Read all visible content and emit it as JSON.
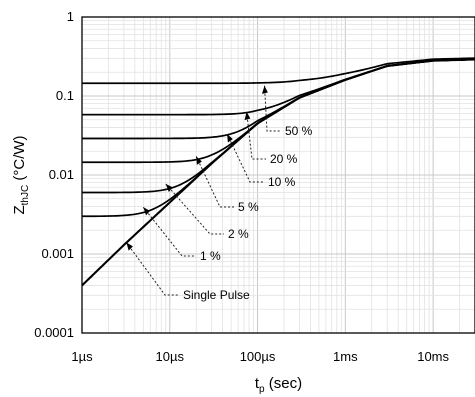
{
  "chart_data": {
    "type": "line",
    "title": "",
    "x_scale": "log",
    "y_scale": "log",
    "xlim": [
      1e-06,
      0.03
    ],
    "ylim": [
      0.0001,
      1
    ],
    "grid": true,
    "xlabel": {
      "main": "t",
      "sub": "p",
      "unit": " (sec)"
    },
    "ylabel": {
      "main": "Z",
      "sub": "thJC",
      "unit": " (°C/W)"
    },
    "x_ticks": [
      {
        "value": 1e-06,
        "label": "1µs"
      },
      {
        "value": 1e-05,
        "label": "10µs"
      },
      {
        "value": 0.0001,
        "label": "100µs"
      },
      {
        "value": 0.001,
        "label": "1ms"
      },
      {
        "value": 0.01,
        "label": "10ms"
      }
    ],
    "y_ticks": [
      {
        "value": 1,
        "label": "1"
      },
      {
        "value": 0.1,
        "label": "0.1"
      },
      {
        "value": 0.01,
        "label": "0.01"
      },
      {
        "value": 0.001,
        "label": "0.001"
      },
      {
        "value": 0.0001,
        "label": "0.0001"
      }
    ],
    "series": [
      {
        "name": "Single Pulse",
        "duty_percent": 0,
        "steady_level": 0
      },
      {
        "name": "1 %",
        "duty_percent": 1,
        "steady_level": 0.003
      },
      {
        "name": "2 %",
        "duty_percent": 2,
        "steady_level": 0.006
      },
      {
        "name": "5 %",
        "duty_percent": 5,
        "steady_level": 0.0145
      },
      {
        "name": "10 %",
        "duty_percent": 10,
        "steady_level": 0.029
      },
      {
        "name": "20 %",
        "duty_percent": 20,
        "steady_level": 0.058
      },
      {
        "name": "50 %",
        "duty_percent": 50,
        "steady_level": 0.145
      }
    ],
    "single_pulse_points": [
      [
        1e-06,
        0.0004
      ],
      [
        3e-06,
        0.0013
      ],
      [
        1e-05,
        0.0045
      ],
      [
        3e-05,
        0.014
      ],
      [
        0.0001,
        0.045
      ],
      [
        0.0003,
        0.095
      ],
      [
        0.001,
        0.16
      ],
      [
        0.003,
        0.24
      ],
      [
        0.01,
        0.28
      ],
      [
        0.03,
        0.29
      ]
    ],
    "annotations": [
      {
        "label": "50 %",
        "target": [
          0.00012,
          0.135
        ]
      },
      {
        "label": "20 %",
        "target": [
          7.5e-05,
          0.063
        ]
      },
      {
        "label": "10 %",
        "target": [
          4.5e-05,
          0.033
        ]
      },
      {
        "label": "5 %",
        "target": [
          2e-05,
          0.0172
        ]
      },
      {
        "label": "2 %",
        "target": [
          9e-06,
          0.0077
        ]
      },
      {
        "label": "1 %",
        "target": [
          5e-06,
          0.0039
        ]
      },
      {
        "label": "Single Pulse",
        "target": [
          3.2e-06,
          0.0014
        ]
      }
    ]
  }
}
